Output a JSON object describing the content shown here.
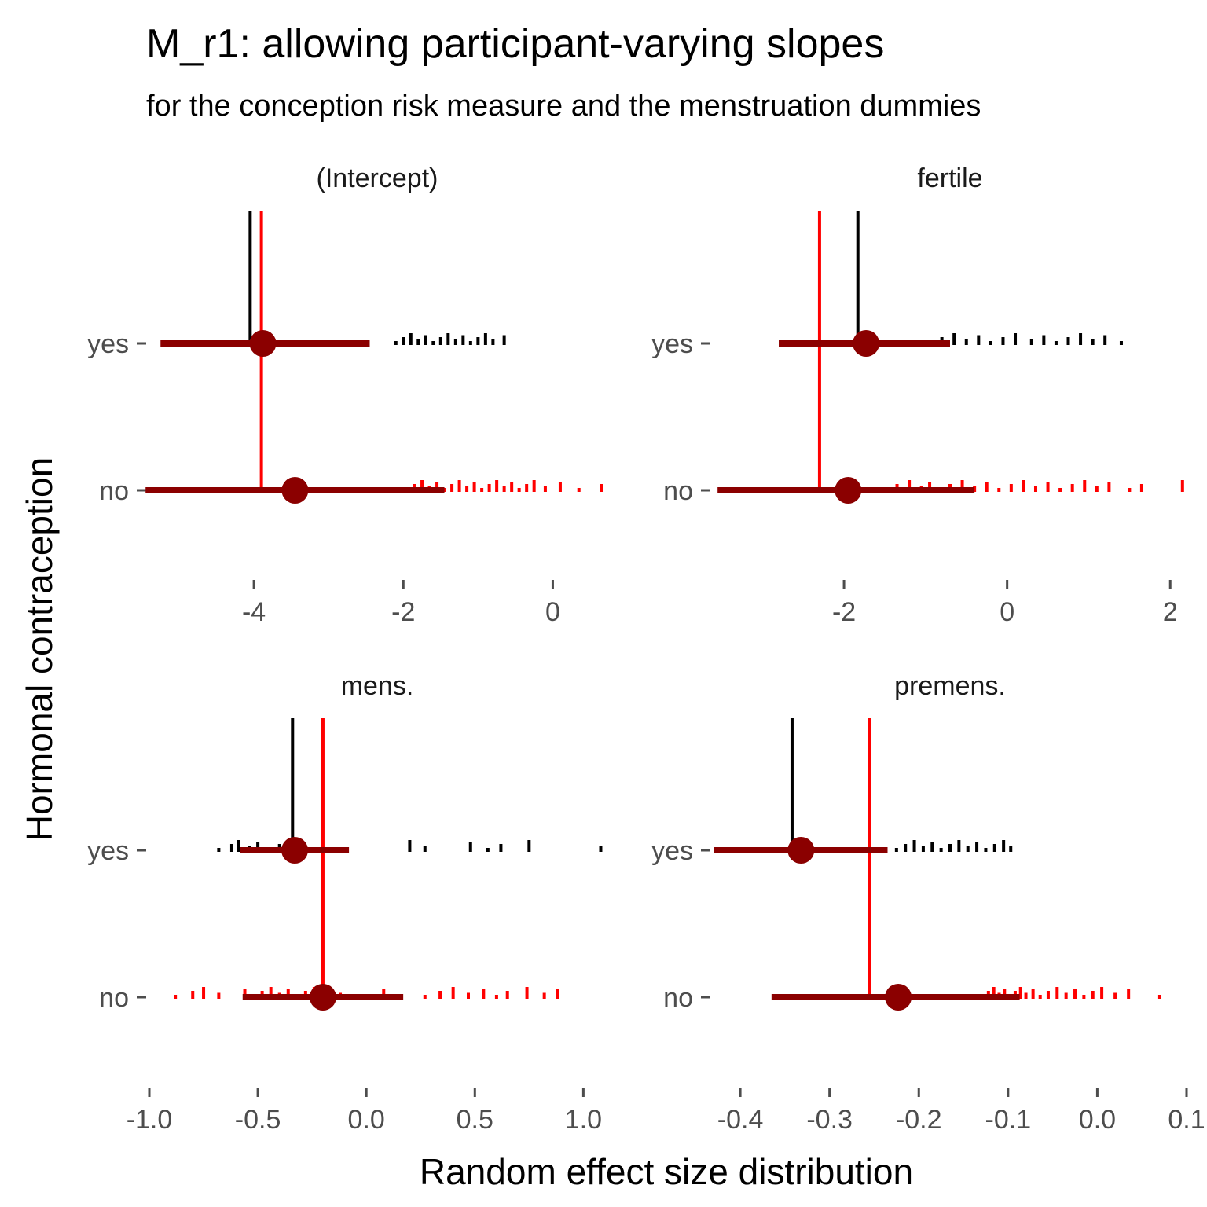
{
  "chart_data": {
    "type": "scatter",
    "title": "M_r1: allowing participant-varying slopes",
    "subtitle": "for the conception risk measure and the menstruation dummies",
    "xlabel": "Random effect size distribution",
    "ylabel": "Hormonal contraception",
    "categories": [
      "yes",
      "no"
    ],
    "colors": {
      "yes_dots": "#000000",
      "no_dots": "#ff0000",
      "yes_line": "#000000",
      "no_line": "#ff0000",
      "estimate": "#8b0000"
    },
    "panels": [
      {
        "strip": "(Intercept)",
        "xlim": [
          -5.4,
          0.7
        ],
        "xticks": [
          -4,
          -2,
          0
        ],
        "xtick_labels": [
          "-4",
          "-2",
          "0"
        ],
        "vlines": {
          "yes": -4.05,
          "no": -3.9
        },
        "estimates": [
          {
            "group": "yes",
            "point": -3.88,
            "lower": -5.25,
            "upper": -2.45
          },
          {
            "group": "no",
            "point": -3.45,
            "lower": -5.45,
            "upper": -1.45
          }
        ],
        "dots": {
          "yes": [
            -2.1,
            -2.0,
            -1.9,
            -1.8,
            -1.7,
            -1.6,
            -1.5,
            -1.4,
            -1.3,
            -1.2,
            -1.1,
            -1.0,
            -0.9,
            -0.8,
            -0.65
          ],
          "no": [
            -1.95,
            -1.85,
            -1.75,
            -1.65,
            -1.55,
            -1.45,
            -1.35,
            -1.25,
            -1.15,
            -1.05,
            -0.95,
            -0.85,
            -0.75,
            -0.65,
            -0.55,
            -0.45,
            -0.35,
            -0.25,
            -0.1,
            0.1,
            0.35,
            0.65
          ]
        }
      },
      {
        "strip": "fertile",
        "xlim": [
          -3.6,
          2.2
        ],
        "xticks": [
          -2,
          0,
          2
        ],
        "xtick_labels": [
          "-2",
          "0",
          "2"
        ],
        "vlines": {
          "yes": -1.83,
          "no": -2.3
        },
        "estimates": [
          {
            "group": "yes",
            "point": -1.73,
            "lower": -2.8,
            "upper": -0.7
          },
          {
            "group": "no",
            "point": -1.95,
            "lower": -3.55,
            "upper": -0.4
          }
        ],
        "dots": {
          "yes": [
            -0.95,
            -0.8,
            -0.65,
            -0.5,
            -0.35,
            -0.2,
            -0.05,
            0.1,
            0.3,
            0.45,
            0.6,
            0.75,
            0.9,
            1.05,
            1.2,
            1.4
          ],
          "no": [
            -1.5,
            -1.35,
            -1.2,
            -1.05,
            -0.95,
            -0.85,
            -0.7,
            -0.55,
            -0.4,
            -0.25,
            -0.1,
            0.05,
            0.2,
            0.35,
            0.5,
            0.65,
            0.8,
            0.95,
            1.1,
            1.25,
            1.5,
            1.65,
            2.15
          ]
        }
      },
      {
        "strip": "mens.",
        "xlim": [
          -1.0,
          1.1
        ],
        "xticks": [
          -1.0,
          -0.5,
          0.0,
          0.5,
          1.0
        ],
        "xtick_labels": [
          "-1.0",
          "-0.5",
          "0.0",
          "0.5",
          "1.0"
        ],
        "vlines": {
          "yes": -0.34,
          "no": -0.2
        },
        "estimates": [
          {
            "group": "yes",
            "point": -0.33,
            "lower": -0.58,
            "upper": -0.08
          },
          {
            "group": "no",
            "point": -0.2,
            "lower": -0.57,
            "upper": 0.17
          }
        ],
        "dots": {
          "yes": [
            -0.68,
            -0.62,
            -0.59,
            -0.54,
            -0.5,
            -0.45,
            -0.4,
            0.2,
            0.27,
            0.48,
            0.56,
            0.62,
            0.75,
            1.08
          ],
          "no": [
            -0.88,
            -0.8,
            -0.75,
            -0.68,
            -0.56,
            -0.52,
            -0.48,
            -0.44,
            -0.4,
            -0.36,
            -0.32,
            -0.28,
            -0.24,
            -0.12,
            0.08,
            0.27,
            0.34,
            0.4,
            0.47,
            0.54,
            0.6,
            0.65,
            0.74,
            0.82,
            0.88
          ]
        }
      },
      {
        "strip": "premens.",
        "xlim": [
          -0.43,
          0.1
        ],
        "xticks": [
          -0.4,
          -0.3,
          -0.2,
          -0.1,
          0.0,
          0.1
        ],
        "xtick_labels": [
          "-0.4",
          "-0.3",
          "-0.2",
          "-0.1",
          "0.0",
          "0.1"
        ],
        "vlines": {
          "yes": -0.342,
          "no": -0.255
        },
        "estimates": [
          {
            "group": "yes",
            "point": -0.332,
            "lower": -0.43,
            "upper": -0.235
          },
          {
            "group": "no",
            "point": -0.223,
            "lower": -0.365,
            "upper": -0.087
          }
        ],
        "dots": {
          "yes": [
            -0.225,
            -0.215,
            -0.205,
            -0.195,
            -0.185,
            -0.175,
            -0.165,
            -0.155,
            -0.145,
            -0.135,
            -0.125,
            -0.115,
            -0.105,
            -0.097
          ],
          "no": [
            -0.128,
            -0.122,
            -0.116,
            -0.11,
            -0.104,
            -0.098,
            -0.092,
            -0.086,
            -0.08,
            -0.072,
            -0.064,
            -0.055,
            -0.045,
            -0.035,
            -0.025,
            -0.015,
            -0.005,
            0.005,
            0.02,
            0.035,
            0.07
          ]
        }
      }
    ]
  }
}
